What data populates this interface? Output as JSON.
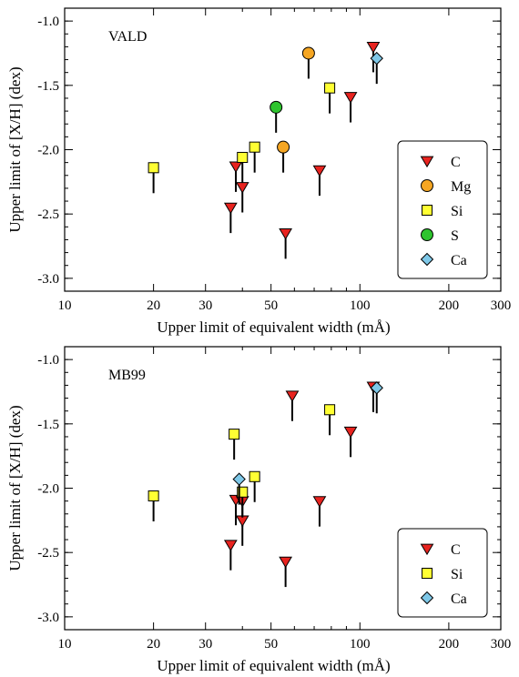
{
  "colors": {
    "C": "#e8231f",
    "Mg": "#f5a623",
    "Si": "#ffff33",
    "S": "#2ec42e",
    "Ca": "#7ec8e8",
    "axis": "#000000"
  },
  "chart_data": [
    {
      "type": "scatter",
      "title": "VALD",
      "xlabel": "Upper limit of equivalent width (mÅ)",
      "ylabel": "Upper limit of [X/H] (dex)",
      "xscale": "log",
      "xlim": [
        10,
        300
      ],
      "ylim": [
        -3.1,
        -0.9
      ],
      "x_ticks": [
        10,
        20,
        30,
        50,
        100,
        200,
        300
      ],
      "x_tick_labels": [
        "10",
        "20",
        "30",
        "50",
        "100",
        "200",
        "300"
      ],
      "y_ticks": [
        -1.0,
        -1.5,
        -2.0,
        -2.5,
        -3.0
      ],
      "y_tick_labels": [
        "-1.0",
        "-1.5",
        "-2.0",
        "-2.5",
        "-3.0"
      ],
      "marker_note": "upper limits (downward arrows)",
      "legend_position": "lower-right",
      "series": [
        {
          "name": "C",
          "marker": "triangle-down",
          "x": [
            36.5,
            38,
            40,
            56,
            73,
            93,
            111
          ],
          "y": [
            -2.45,
            -2.13,
            -2.29,
            -2.65,
            -2.16,
            -1.59,
            -1.2
          ]
        },
        {
          "name": "Mg",
          "marker": "circle",
          "x": [
            55,
            67
          ],
          "y": [
            -1.98,
            -1.25
          ]
        },
        {
          "name": "Si",
          "marker": "square",
          "x": [
            20,
            40,
            44,
            79
          ],
          "y": [
            -2.14,
            -2.06,
            -1.98,
            -1.52
          ]
        },
        {
          "name": "S",
          "marker": "circle",
          "x": [
            52
          ],
          "y": [
            -1.67
          ]
        },
        {
          "name": "Ca",
          "marker": "diamond",
          "x": [
            114
          ],
          "y": [
            -1.29
          ]
        }
      ]
    },
    {
      "type": "scatter",
      "title": "MB99",
      "xlabel": "Upper limit of equivalent width (mÅ)",
      "ylabel": "Upper limit of [X/H] (dex)",
      "xscale": "log",
      "xlim": [
        10,
        300
      ],
      "ylim": [
        -3.1,
        -0.9
      ],
      "x_ticks": [
        10,
        20,
        30,
        50,
        100,
        200,
        300
      ],
      "x_tick_labels": [
        "10",
        "20",
        "30",
        "50",
        "100",
        "200",
        "300"
      ],
      "y_ticks": [
        -1.0,
        -1.5,
        -2.0,
        -2.5,
        -3.0
      ],
      "y_tick_labels": [
        "-1.0",
        "-1.5",
        "-2.0",
        "-2.5",
        "-3.0"
      ],
      "marker_note": "upper limits (downward arrows)",
      "legend_position": "lower-right",
      "series": [
        {
          "name": "C",
          "marker": "triangle-down",
          "x": [
            36.5,
            38,
            40,
            40,
            56,
            59,
            73,
            93,
            111
          ],
          "y": [
            -2.44,
            -2.09,
            -2.1,
            -2.25,
            -2.57,
            -1.28,
            -2.1,
            -1.56,
            -1.21
          ]
        },
        {
          "name": "Si",
          "marker": "square",
          "x": [
            20,
            37.5,
            40,
            44,
            79
          ],
          "y": [
            -2.06,
            -1.58,
            -2.03,
            -1.91,
            -1.39
          ]
        },
        {
          "name": "Ca",
          "marker": "diamond",
          "x": [
            39,
            114
          ],
          "y": [
            -1.93,
            -1.22
          ]
        }
      ]
    }
  ]
}
